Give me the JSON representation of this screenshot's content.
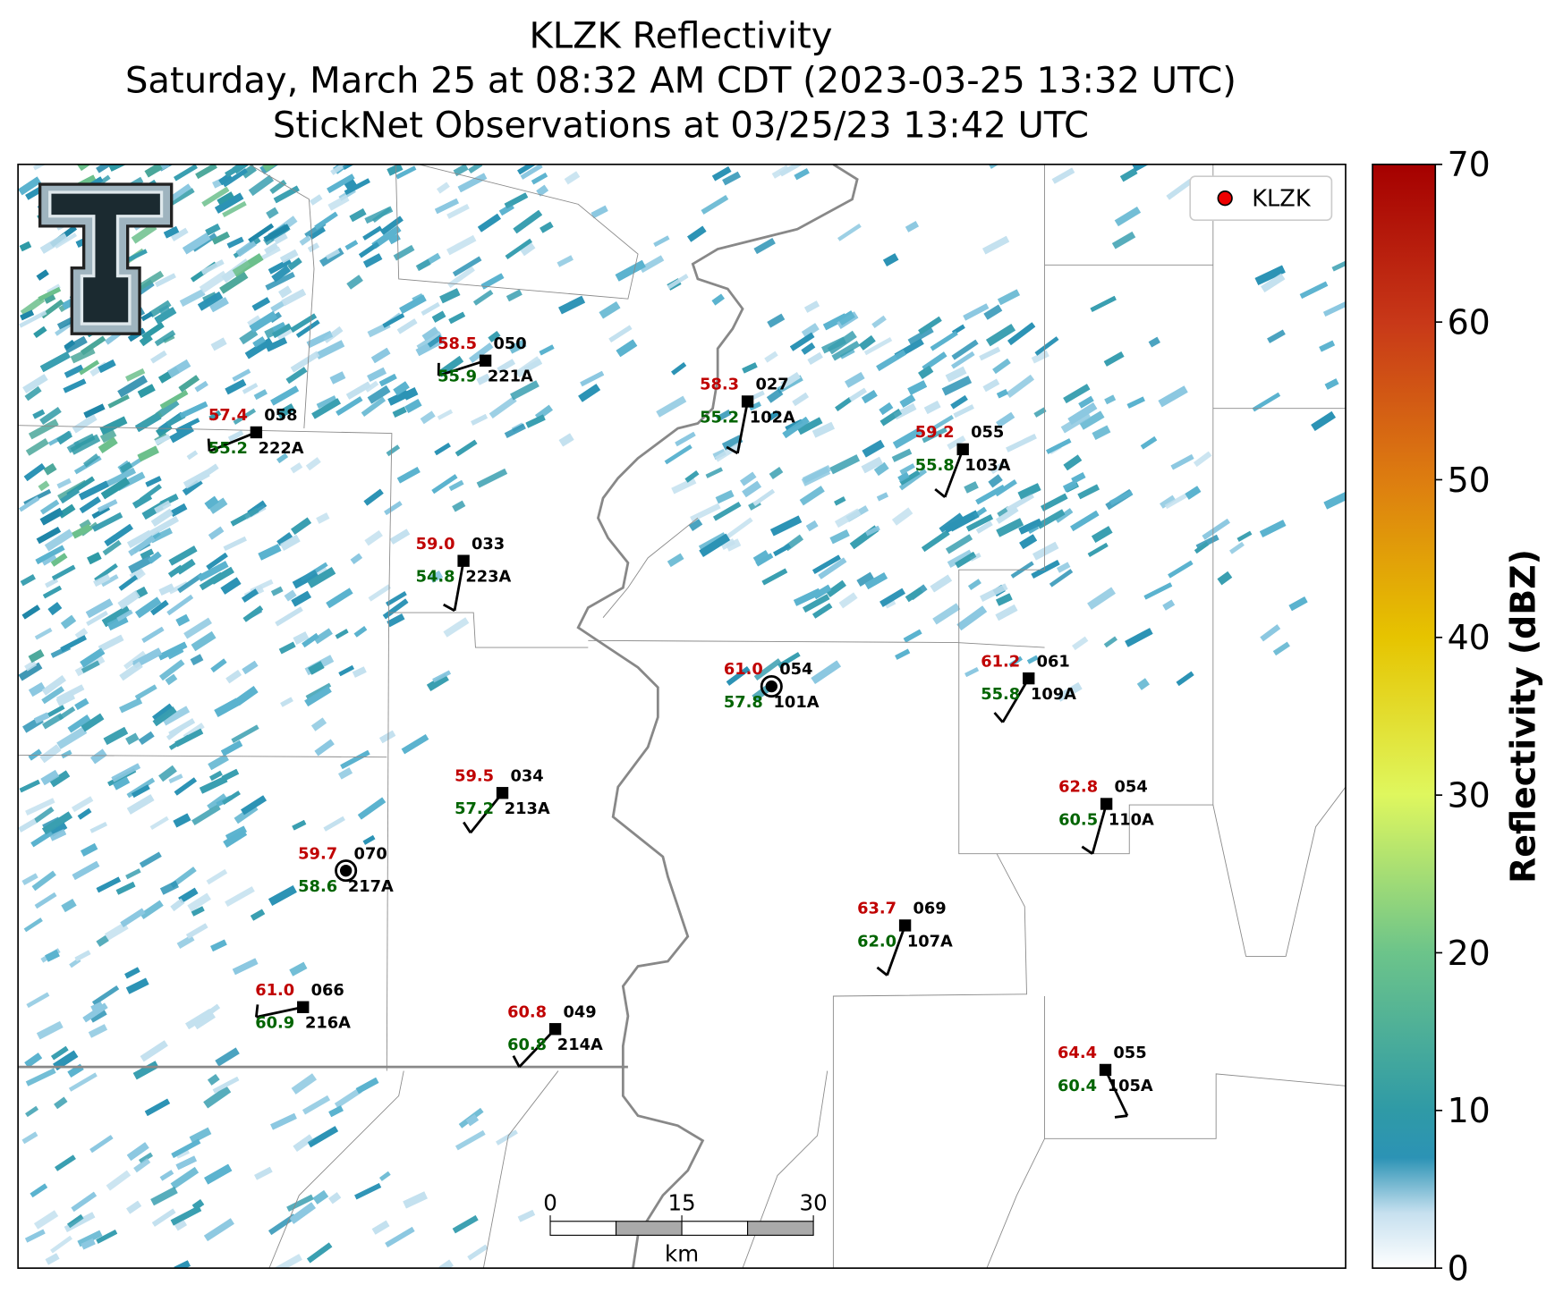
{
  "title": [
    "KLZK Reflectivity",
    "Saturday, March 25 at 08:32 AM CDT (2023-03-25 13:32 UTC)",
    "StickNet Observations at 03/25/23 13:42 UTC"
  ],
  "legend": {
    "label": "KLZK"
  },
  "stations": [
    {
      "id": "222A",
      "temperature": "57.4",
      "dewpoint": "55.2",
      "pressure": "058"
    },
    {
      "id": "221A",
      "temperature": "58.5",
      "dewpoint": "55.9",
      "pressure": "050"
    },
    {
      "id": "102A",
      "temperature": "58.3",
      "dewpoint": "55.2",
      "pressure": "027"
    },
    {
      "id": "103A",
      "temperature": "59.2",
      "dewpoint": "55.8",
      "pressure": "055"
    },
    {
      "id": "223A",
      "temperature": "59.0",
      "dewpoint": "54.8",
      "pressure": "033"
    },
    {
      "id": "101A",
      "temperature": "61.0",
      "dewpoint": "57.8",
      "pressure": "054"
    },
    {
      "id": "109A",
      "temperature": "61.2",
      "dewpoint": "55.8",
      "pressure": "061"
    },
    {
      "id": "213A",
      "temperature": "59.5",
      "dewpoint": "57.2",
      "pressure": "034"
    },
    {
      "id": "217A",
      "temperature": "59.7",
      "dewpoint": "58.6",
      "pressure": "070"
    },
    {
      "id": "110A",
      "temperature": "62.8",
      "dewpoint": "60.5",
      "pressure": "054"
    },
    {
      "id": "107A",
      "temperature": "63.7",
      "dewpoint": "62.0",
      "pressure": "069"
    },
    {
      "id": "216A",
      "temperature": "61.0",
      "dewpoint": "60.9",
      "pressure": "066"
    },
    {
      "id": "214A",
      "temperature": "60.8",
      "dewpoint": "60.8",
      "pressure": "049"
    },
    {
      "id": "105A",
      "temperature": "64.4",
      "dewpoint": "60.4",
      "pressure": "055"
    }
  ],
  "colorbar": {
    "label": "Reflectivity (dBZ)",
    "range": [
      0,
      70
    ],
    "ticks": [
      0,
      10,
      20,
      30,
      40,
      50,
      60,
      70
    ]
  },
  "scale_bar": {
    "ticks": [
      0,
      15,
      30
    ],
    "unit": "km"
  }
}
